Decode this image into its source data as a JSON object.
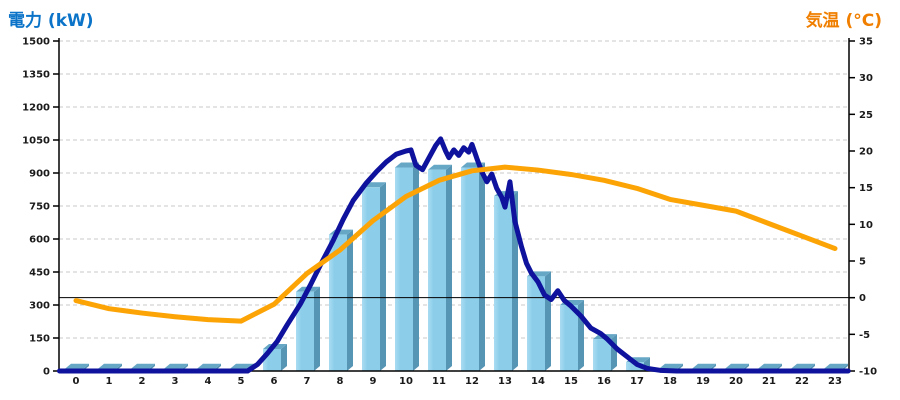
{
  "titles": {
    "left": "電力 (kW)",
    "right": "気温 (°C)"
  },
  "colors": {
    "left_title": "#0b74c8",
    "right_title": "#f07f00",
    "bar_front": "#8cceea",
    "bar_front_highlight": "#aadcf2",
    "bar_side": "#5795b5",
    "bar_top": "#67a7c6",
    "power_line": "#0e129c",
    "temp_line": "#fca406",
    "grid": "#c9c9c9",
    "axis": "#000000",
    "reference_line": "#000000",
    "tick_label": "#1a1a1a"
  },
  "chart_data": {
    "type": "combo",
    "x_hours": [
      0,
      1,
      2,
      3,
      4,
      5,
      6,
      7,
      8,
      9,
      10,
      11,
      12,
      13,
      14,
      15,
      16,
      17,
      18,
      19,
      20,
      21,
      22,
      23
    ],
    "left_axis": {
      "title": "電力 (kW)",
      "unit": "kW",
      "min": 0,
      "max": 1500,
      "tick_step": 150,
      "ticks": [
        0,
        150,
        300,
        450,
        600,
        750,
        900,
        1050,
        1200,
        1350,
        1500
      ]
    },
    "right_axis": {
      "title": "気温 (°C)",
      "unit": "°C",
      "min": -10,
      "max": 35,
      "tick_step": 5,
      "ticks": [
        -10,
        -5,
        0,
        5,
        10,
        15,
        20,
        25,
        30,
        35
      ]
    },
    "grid": {
      "horizontal": "dashed",
      "at_left_ticks": true
    },
    "reference_line": {
      "axis": "right",
      "value": 0
    },
    "series": [
      {
        "name": "power-bars",
        "type": "bar",
        "axis": "left",
        "values": [
          10,
          10,
          10,
          10,
          10,
          10,
          100,
          360,
          620,
          835,
          925,
          915,
          925,
          795,
          430,
          300,
          145,
          40,
          10,
          10,
          10,
          10,
          10,
          10
        ]
      },
      {
        "name": "power-line",
        "type": "line",
        "axis": "left",
        "points": [
          [
            -0.5,
            0
          ],
          [
            2,
            0
          ],
          [
            4,
            0
          ],
          [
            5.2,
            0
          ],
          [
            5.5,
            30
          ],
          [
            5.8,
            80
          ],
          [
            6.1,
            135
          ],
          [
            6.4,
            210
          ],
          [
            6.8,
            305
          ],
          [
            7.1,
            390
          ],
          [
            7.4,
            480
          ],
          [
            7.8,
            595
          ],
          [
            8.1,
            690
          ],
          [
            8.4,
            775
          ],
          [
            8.8,
            855
          ],
          [
            9.1,
            905
          ],
          [
            9.4,
            950
          ],
          [
            9.7,
            985
          ],
          [
            10.0,
            1000
          ],
          [
            10.15,
            1005
          ],
          [
            10.3,
            935
          ],
          [
            10.5,
            915
          ],
          [
            10.7,
            970
          ],
          [
            10.9,
            1025
          ],
          [
            11.05,
            1055
          ],
          [
            11.2,
            1000
          ],
          [
            11.3,
            970
          ],
          [
            11.45,
            1005
          ],
          [
            11.6,
            980
          ],
          [
            11.75,
            1015
          ],
          [
            11.9,
            995
          ],
          [
            12.0,
            1030
          ],
          [
            12.15,
            965
          ],
          [
            12.3,
            905
          ],
          [
            12.45,
            860
          ],
          [
            12.6,
            895
          ],
          [
            12.75,
            830
          ],
          [
            12.9,
            790
          ],
          [
            13.0,
            745
          ],
          [
            13.15,
            860
          ],
          [
            13.3,
            680
          ],
          [
            13.5,
            565
          ],
          [
            13.65,
            490
          ],
          [
            13.8,
            445
          ],
          [
            14.0,
            405
          ],
          [
            14.2,
            345
          ],
          [
            14.4,
            325
          ],
          [
            14.6,
            365
          ],
          [
            14.8,
            320
          ],
          [
            15.0,
            295
          ],
          [
            15.3,
            250
          ],
          [
            15.6,
            195
          ],
          [
            15.9,
            170
          ],
          [
            16.1,
            145
          ],
          [
            16.4,
            100
          ],
          [
            16.7,
            65
          ],
          [
            17.0,
            30
          ],
          [
            17.3,
            12
          ],
          [
            17.7,
            3
          ],
          [
            18.2,
            0
          ],
          [
            23.4,
            0
          ]
        ]
      },
      {
        "name": "temperature-line",
        "type": "line",
        "axis": "right",
        "values": [
          -0.4,
          -1.5,
          -2.1,
          -2.6,
          -3.0,
          -3.2,
          -0.9,
          3.3,
          6.5,
          10.5,
          13.8,
          16.0,
          17.3,
          17.8,
          17.4,
          16.8,
          16.0,
          14.9,
          13.4,
          12.6,
          11.8,
          10.1,
          8.4,
          6.7
        ]
      }
    ]
  }
}
